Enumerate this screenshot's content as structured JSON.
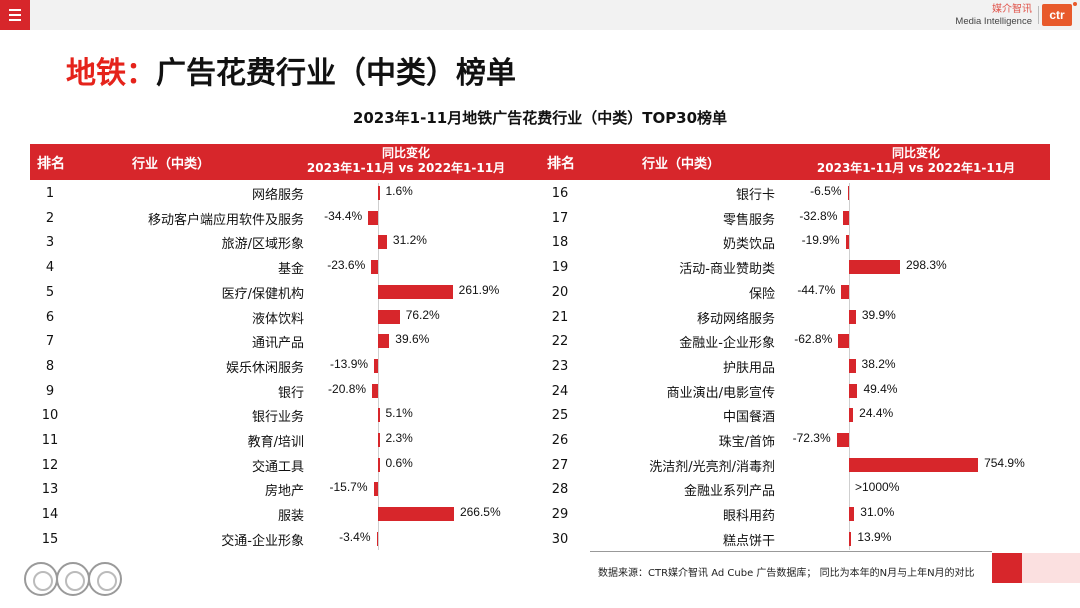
{
  "header": {
    "menu_icon": "menu-icon",
    "brand_cn": "媒介智讯",
    "brand_en": "Media Intelligence",
    "logo_text": "ctr"
  },
  "page_title_red": "地铁：",
  "page_title_black": "广告花费行业（中类）榜单",
  "chart_data": {
    "type": "bar",
    "title": "2023年1-11月地铁广告花费行业（中类）TOP30榜单",
    "columns": {
      "rank": "排名",
      "industry": "行业（中类）",
      "change_line1": "同比变化",
      "change_line2": "2023年1-11月 vs 2022年1-11月"
    },
    "unit": "%",
    "left": [
      {
        "rank": "1",
        "industry": "网络服务",
        "value": 1.6,
        "label": "1.6%"
      },
      {
        "rank": "2",
        "industry": "移动客户端应用软件及服务",
        "value": -34.4,
        "label": "-34.4%"
      },
      {
        "rank": "3",
        "industry": "旅游/区域形象",
        "value": 31.2,
        "label": "31.2%"
      },
      {
        "rank": "4",
        "industry": "基金",
        "value": -23.6,
        "label": "-23.6%"
      },
      {
        "rank": "5",
        "industry": "医疗/保健机构",
        "value": 261.9,
        "label": "261.9%"
      },
      {
        "rank": "6",
        "industry": "液体饮料",
        "value": 76.2,
        "label": "76.2%"
      },
      {
        "rank": "7",
        "industry": "通讯产品",
        "value": 39.6,
        "label": "39.6%"
      },
      {
        "rank": "8",
        "industry": "娱乐休闲服务",
        "value": -13.9,
        "label": "-13.9%"
      },
      {
        "rank": "9",
        "industry": "银行",
        "value": -20.8,
        "label": "-20.8%"
      },
      {
        "rank": "10",
        "industry": "银行业务",
        "value": 5.1,
        "label": "5.1%"
      },
      {
        "rank": "11",
        "industry": "教育/培训",
        "value": 2.3,
        "label": "2.3%"
      },
      {
        "rank": "12",
        "industry": "交通工具",
        "value": 0.6,
        "label": "0.6%"
      },
      {
        "rank": "13",
        "industry": "房地产",
        "value": -15.7,
        "label": "-15.7%"
      },
      {
        "rank": "14",
        "industry": "服装",
        "value": 266.5,
        "label": "266.5%"
      },
      {
        "rank": "15",
        "industry": "交通-企业形象",
        "value": -3.4,
        "label": "-3.4%"
      }
    ],
    "right": [
      {
        "rank": "16",
        "industry": "银行卡",
        "value": -6.5,
        "label": "-6.5%"
      },
      {
        "rank": "17",
        "industry": "零售服务",
        "value": -32.8,
        "label": "-32.8%"
      },
      {
        "rank": "18",
        "industry": "奶类饮品",
        "value": -19.9,
        "label": "-19.9%"
      },
      {
        "rank": "19",
        "industry": "活动-商业赞助类",
        "value": 298.3,
        "label": "298.3%"
      },
      {
        "rank": "20",
        "industry": "保险",
        "value": -44.7,
        "label": "-44.7%"
      },
      {
        "rank": "21",
        "industry": "移动网络服务",
        "value": 39.9,
        "label": "39.9%"
      },
      {
        "rank": "22",
        "industry": "金融业-企业形象",
        "value": -62.8,
        "label": "-62.8%"
      },
      {
        "rank": "23",
        "industry": "护肤用品",
        "value": 38.2,
        "label": "38.2%"
      },
      {
        "rank": "24",
        "industry": "商业演出/电影宣传",
        "value": 49.4,
        "label": "49.4%"
      },
      {
        "rank": "25",
        "industry": "中国餐酒",
        "value": 24.4,
        "label": "24.4%"
      },
      {
        "rank": "26",
        "industry": "珠宝/首饰",
        "value": -72.3,
        "label": "-72.3%"
      },
      {
        "rank": "27",
        "industry": "洗洁剂/光亮剂/消毒剂",
        "value": 754.9,
        "label": "754.9%"
      },
      {
        "rank": "28",
        "industry": "金融业系列产品",
        "value": null,
        "label": ">1000%"
      },
      {
        "rank": "29",
        "industry": "眼科用药",
        "value": 31.0,
        "label": "31.0%"
      },
      {
        "rank": "30",
        "industry": "糕点饼干",
        "value": 13.9,
        "label": "13.9%"
      }
    ],
    "bar_color": "#d7262b"
  },
  "footer": {
    "source": "数据来源：CTR媒介智讯 Ad Cube 广告数据库；  同比为本年的N月与上年N月的对比",
    "cert_icons": [
      "sgs-cert-icon",
      "sgs-cert-icon",
      "sgs-cert-icon"
    ]
  },
  "colors": {
    "accent": "#d7262b",
    "title_red": "#e5231b"
  }
}
